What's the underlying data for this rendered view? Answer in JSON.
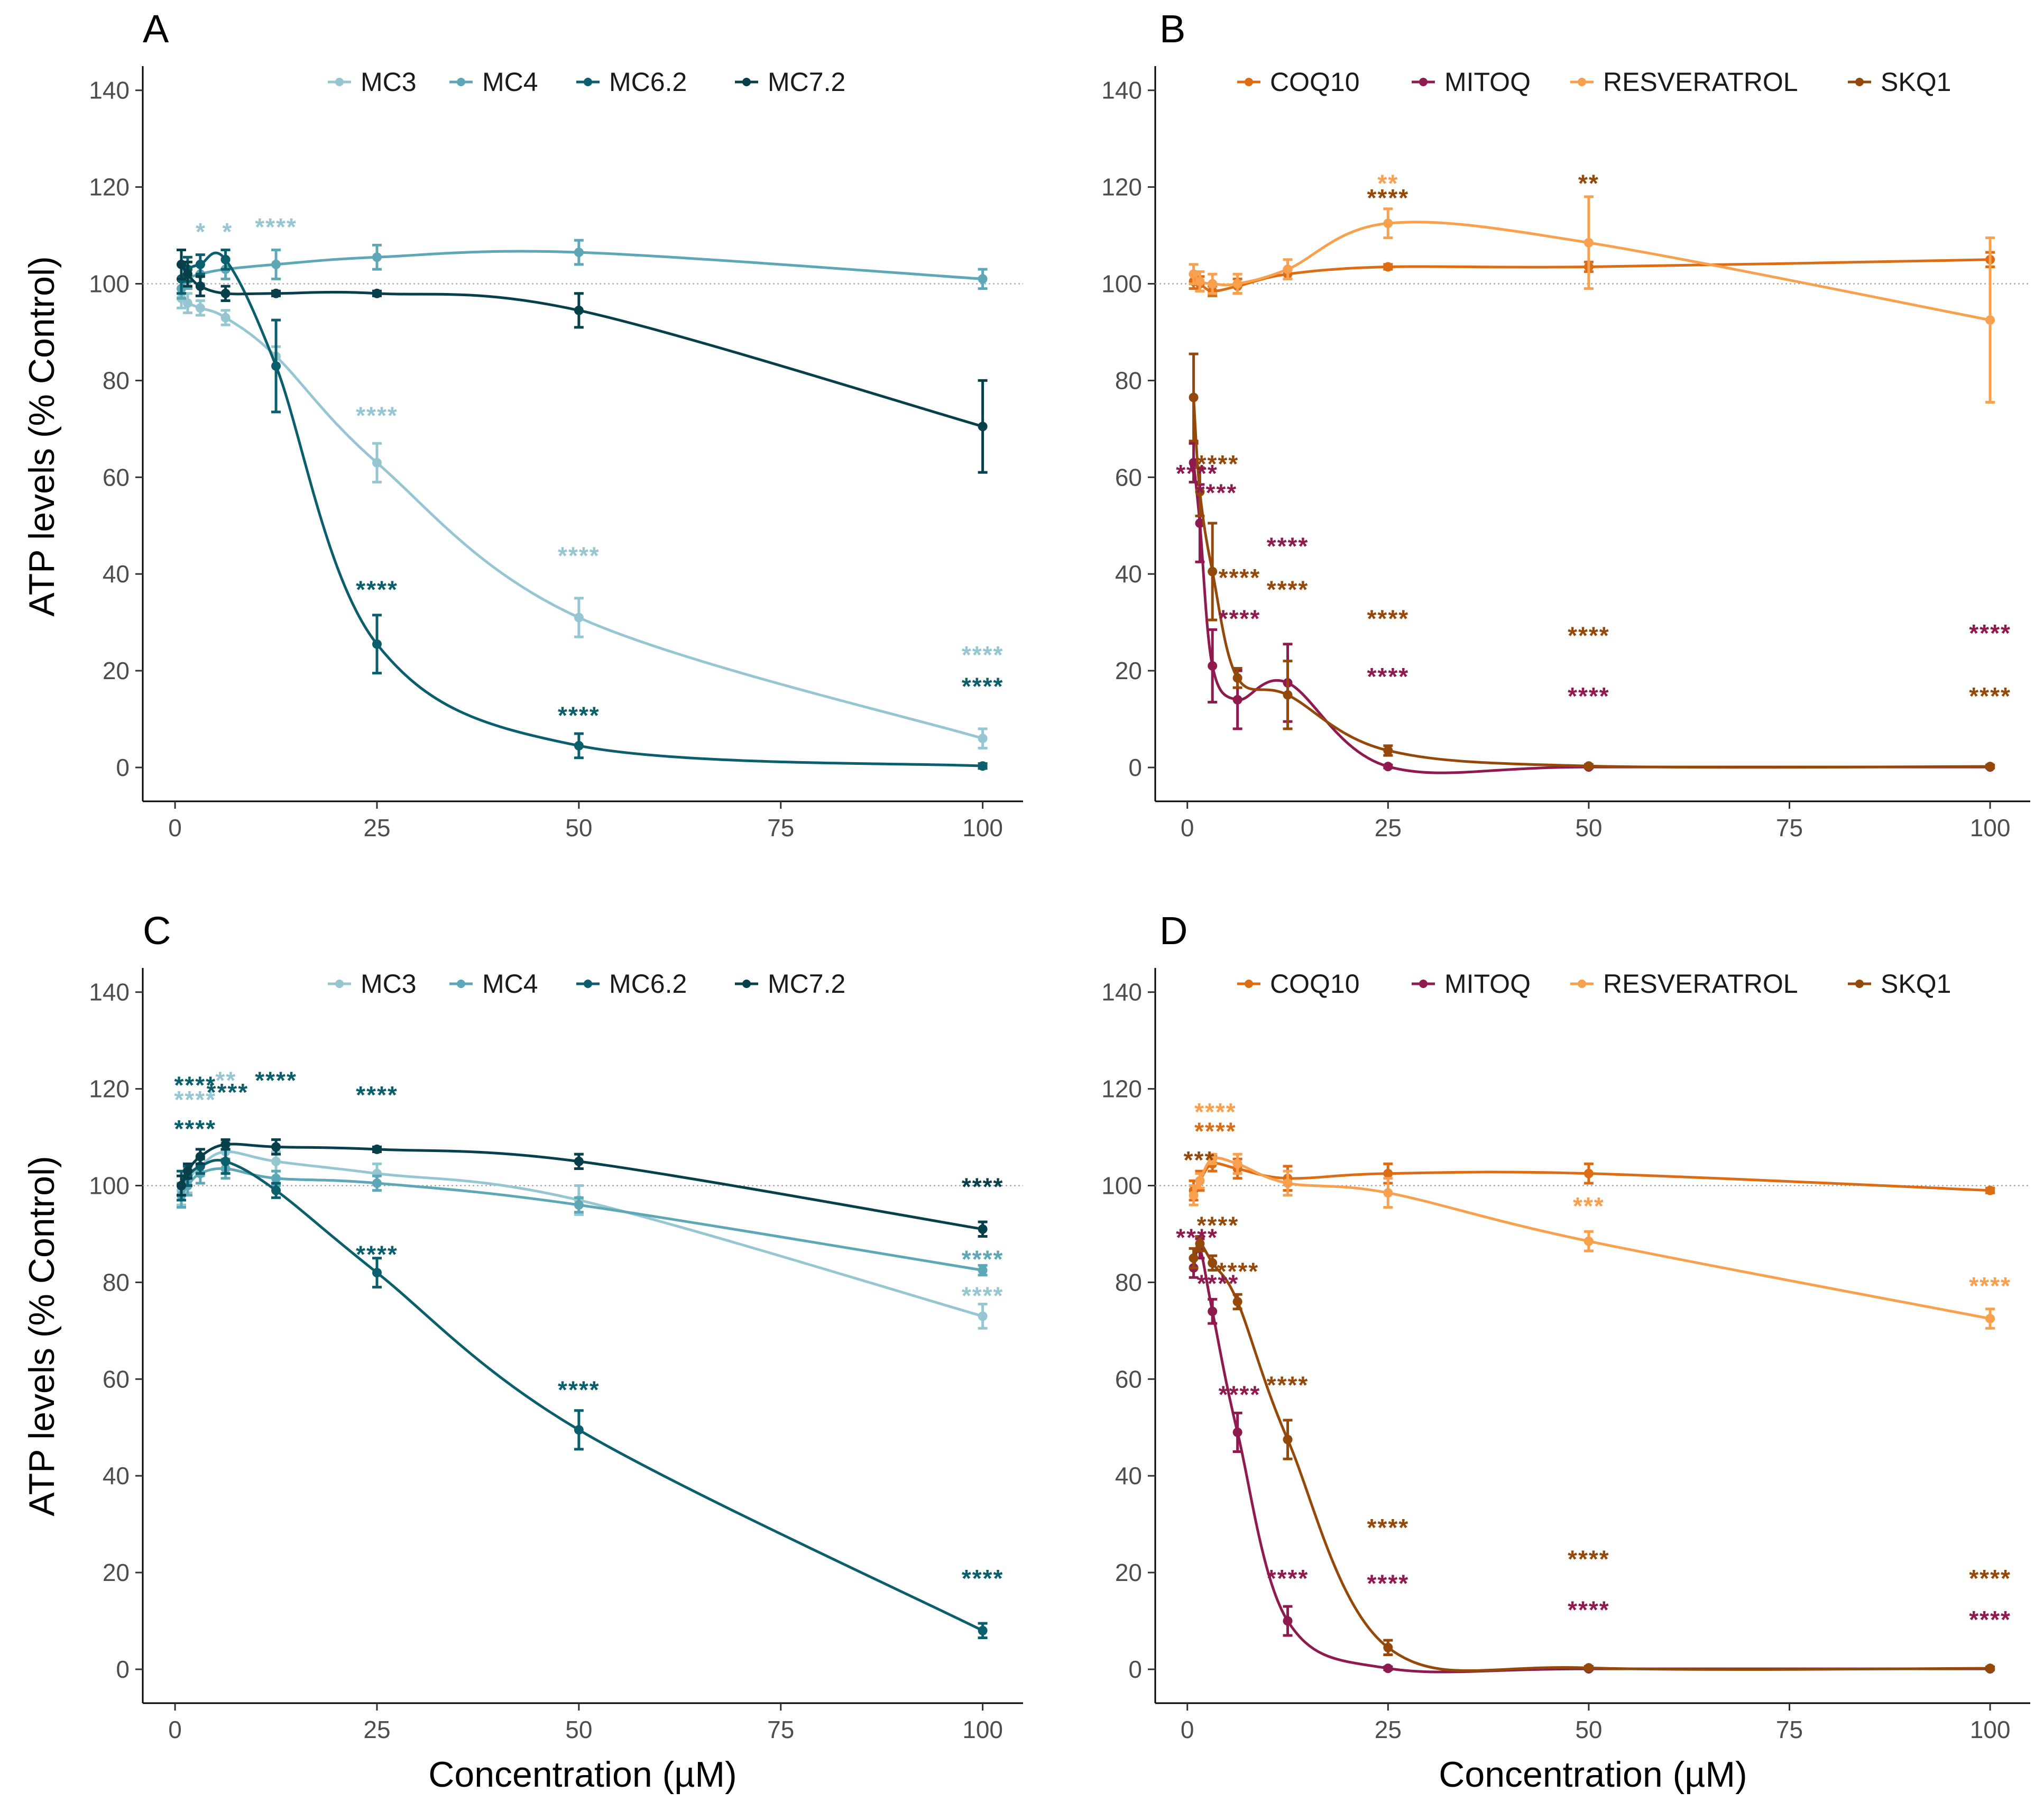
{
  "figure": {
    "y_axis_title": "ATP levels (% Control)",
    "x_axis_title": "Concentration (µM)"
  },
  "colors": {
    "MC3": "#95c6d1",
    "MC4": "#5da7b6",
    "MC6.2": "#0b5e6b",
    "MC7.2": "#073f4b",
    "COQ10": "#dc6d14",
    "MITOQ": "#8e1a50",
    "RESVERATROL": "#f8a04e",
    "SKQ1": "#94490b"
  },
  "chart_data": [
    {
      "panel": "A",
      "type": "line",
      "xlabel": "Concentration (µM)",
      "ylabel": "ATP levels (% Control)",
      "xlim": [
        -4,
        105
      ],
      "ylim": [
        -7,
        145
      ],
      "xticks": [
        "0",
        "25",
        "50",
        "75",
        "100"
      ],
      "yticks": [
        "0",
        "20",
        "40",
        "60",
        "80",
        "100",
        "120",
        "140"
      ],
      "legend": [
        "MC3",
        "MC4",
        "MC6.2",
        "MC7.2"
      ],
      "series": [
        {
          "name": "MC3",
          "x": [
            0.78,
            1.56,
            3.125,
            6.25,
            12.5,
            25,
            50,
            100
          ],
          "y": [
            97,
            96,
            95,
            93,
            85,
            63,
            31,
            6
          ],
          "err": [
            2,
            2,
            1.5,
            1.5,
            2,
            4,
            4,
            2
          ]
        },
        {
          "name": "MC4",
          "x": [
            0.78,
            1.56,
            3.125,
            6.25,
            12.5,
            25,
            50,
            100
          ],
          "y": [
            99,
            101,
            102,
            103,
            104,
            105.5,
            106.5,
            101
          ],
          "err": [
            2,
            2,
            2,
            2,
            3,
            2.5,
            2.5,
            2
          ]
        },
        {
          "name": "MC6.2",
          "x": [
            0.78,
            1.56,
            3.125,
            6.25,
            12.5,
            25,
            50,
            100
          ],
          "y": [
            101,
            103,
            104,
            105,
            83,
            25.5,
            4.5,
            0.3
          ],
          "err": [
            3,
            2.5,
            2,
            2,
            9.5,
            6,
            2.5,
            0.5
          ]
        },
        {
          "name": "MC7.2",
          "x": [
            0.78,
            1.56,
            3.125,
            6.25,
            12.5,
            25,
            50,
            100
          ],
          "y": [
            104,
            102,
            99.5,
            98,
            98,
            98,
            94.5,
            70.5
          ],
          "err": [
            3,
            2.5,
            2,
            1.5,
            0.5,
            0.5,
            3.5,
            9.5
          ]
        }
      ],
      "annotations": [
        {
          "text": "*",
          "x": 3.2,
          "y": 111,
          "series": "MC3"
        },
        {
          "text": "*",
          "x": 6.5,
          "y": 111,
          "series": "MC3"
        },
        {
          "text": "****",
          "x": 12.5,
          "y": 112,
          "series": "MC3"
        },
        {
          "text": "****",
          "x": 25,
          "y": 73,
          "series": "MC3"
        },
        {
          "text": "****",
          "x": 50,
          "y": 44,
          "series": "MC3"
        },
        {
          "text": "****",
          "x": 100,
          "y": 23.5,
          "series": "MC3"
        },
        {
          "text": "****",
          "x": 25,
          "y": 37,
          "series": "MC6.2"
        },
        {
          "text": "****",
          "x": 50,
          "y": 11,
          "series": "MC6.2"
        },
        {
          "text": "****",
          "x": 100,
          "y": 17,
          "series": "MC6.2"
        }
      ]
    },
    {
      "panel": "B",
      "type": "line",
      "xlabel": "Concentration (µM)",
      "ylabel": "ATP levels (% Control)",
      "xlim": [
        -4,
        105
      ],
      "ylim": [
        -7,
        145
      ],
      "xticks": [
        "0",
        "25",
        "50",
        "75",
        "100"
      ],
      "yticks": [
        "0",
        "20",
        "40",
        "60",
        "80",
        "100",
        "120",
        "140"
      ],
      "legend": [
        "COQ10",
        "MITOQ",
        "RESVERATROL",
        "SKQ1"
      ],
      "series": [
        {
          "name": "COQ10",
          "x": [
            0.78,
            1.56,
            3.125,
            6.25,
            12.5,
            25,
            50,
            100
          ],
          "y": [
            100.5,
            100,
            98.5,
            99.5,
            102,
            103.5,
            103.5,
            105
          ],
          "err": [
            1.5,
            1.5,
            1,
            1.5,
            1,
            0.5,
            1,
            1.5
          ]
        },
        {
          "name": "MITOQ",
          "x": [
            0.78,
            1.56,
            3.125,
            6.25,
            12.5,
            25,
            50,
            100
          ],
          "y": [
            63,
            50.5,
            21,
            14,
            17.5,
            0.2,
            0.1,
            0.1
          ],
          "err": [
            4,
            8,
            7.5,
            6,
            8,
            0.3,
            0.2,
            0.2
          ]
        },
        {
          "name": "RESVERATROL",
          "x": [
            0.78,
            1.56,
            3.125,
            6.25,
            12.5,
            25,
            50,
            100
          ],
          "y": [
            102,
            100.5,
            100,
            100,
            103,
            112.5,
            108.5,
            92.5
          ],
          "err": [
            2,
            2,
            2,
            2,
            2,
            3,
            9.5,
            17
          ]
        },
        {
          "name": "SKQ1",
          "x": [
            0.78,
            1.56,
            3.125,
            6.25,
            12.5,
            25,
            50,
            100
          ],
          "y": [
            76.5,
            57,
            40.5,
            18.5,
            15,
            3.5,
            0.3,
            0.2
          ],
          "err": [
            9,
            5,
            10,
            2,
            7,
            1,
            0.3,
            0.3
          ]
        }
      ],
      "annotations": [
        {
          "text": "**",
          "x": 25,
          "y": 121,
          "series": "RESVERATROL"
        },
        {
          "text": "****",
          "x": 25,
          "y": 118,
          "series": "SKQ1"
        },
        {
          "text": "**",
          "x": 50,
          "y": 121,
          "series": "SKQ1"
        },
        {
          "text": "****",
          "x": 3.8,
          "y": 63,
          "series": "SKQ1"
        },
        {
          "text": "****",
          "x": 1.2,
          "y": 61,
          "series": "MITOQ"
        },
        {
          "text": "****",
          "x": 3.6,
          "y": 57,
          "series": "MITOQ"
        },
        {
          "text": "****",
          "x": 12.5,
          "y": 46,
          "series": "MITOQ"
        },
        {
          "text": "****",
          "x": 6.5,
          "y": 39.5,
          "series": "SKQ1"
        },
        {
          "text": "****",
          "x": 12.5,
          "y": 37,
          "series": "SKQ1"
        },
        {
          "text": "****",
          "x": 6.5,
          "y": 31,
          "series": "MITOQ"
        },
        {
          "text": "****",
          "x": 25,
          "y": 31,
          "series": "SKQ1"
        },
        {
          "text": "****",
          "x": 25,
          "y": 19,
          "series": "MITOQ"
        },
        {
          "text": "****",
          "x": 50,
          "y": 27.5,
          "series": "SKQ1"
        },
        {
          "text": "****",
          "x": 50,
          "y": 15,
          "series": "MITOQ"
        },
        {
          "text": "****",
          "x": 100,
          "y": 28,
          "series": "MITOQ"
        },
        {
          "text": "****",
          "x": 100,
          "y": 15,
          "series": "SKQ1"
        }
      ]
    },
    {
      "panel": "C",
      "type": "line",
      "xlabel": "Concentration (µM)",
      "ylabel": "ATP levels (% Control)",
      "xlim": [
        -4,
        105
      ],
      "ylim": [
        -7,
        145
      ],
      "xticks": [
        "0",
        "25",
        "50",
        "75",
        "100"
      ],
      "yticks": [
        "0",
        "20",
        "40",
        "60",
        "80",
        "100",
        "120",
        "140"
      ],
      "legend": [
        "MC3",
        "MC4",
        "MC6.2",
        "MC7.2"
      ],
      "series": [
        {
          "name": "MC3",
          "x": [
            0.78,
            1.56,
            3.125,
            6.25,
            12.5,
            25,
            50,
            100
          ],
          "y": [
            99,
            101,
            104,
            107,
            105,
            102.5,
            97,
            73
          ],
          "err": [
            3,
            2.5,
            2,
            2,
            2,
            2,
            3,
            2.5
          ]
        },
        {
          "name": "MC4",
          "x": [
            0.78,
            1.56,
            3.125,
            6.25,
            12.5,
            25,
            50,
            100
          ],
          "y": [
            98,
            100,
            102.5,
            103.5,
            101.5,
            100.5,
            96,
            82.5
          ],
          "err": [
            2.5,
            2,
            2,
            2,
            1.5,
            1.5,
            1.5,
            1
          ]
        },
        {
          "name": "MC6.2",
          "x": [
            0.78,
            1.56,
            3.125,
            6.25,
            12.5,
            25,
            50,
            100
          ],
          "y": [
            100,
            102,
            104,
            105,
            99,
            82,
            49.5,
            8
          ],
          "err": [
            3,
            2,
            1.5,
            2.5,
            1.5,
            3,
            4,
            1.5
          ]
        },
        {
          "name": "MC7.2",
          "x": [
            0.78,
            1.56,
            3.125,
            6.25,
            12.5,
            25,
            50,
            100
          ],
          "y": [
            100,
            103,
            106,
            108.5,
            108,
            107.5,
            105,
            91
          ],
          "err": [
            2,
            1.5,
            1.5,
            1,
            1.5,
            0.5,
            1.5,
            1.5
          ]
        }
      ],
      "annotations": [
        {
          "text": "****",
          "x": 2.5,
          "y": 121,
          "series": "MC6.2"
        },
        {
          "text": "****",
          "x": 2.5,
          "y": 118,
          "series": "MC3"
        },
        {
          "text": "**",
          "x": 6.3,
          "y": 122,
          "series": "MC3"
        },
        {
          "text": "****",
          "x": 6.5,
          "y": 119.5,
          "series": "MC6.2"
        },
        {
          "text": "****",
          "x": 12.5,
          "y": 122,
          "series": "MC6.2"
        },
        {
          "text": "****",
          "x": 25,
          "y": 119,
          "series": "MC6.2"
        },
        {
          "text": "****",
          "x": 2.5,
          "y": 112,
          "series": "MC6.2"
        },
        {
          "text": "****",
          "x": 25,
          "y": 86,
          "series": "MC6.2"
        },
        {
          "text": "****",
          "x": 50,
          "y": 58,
          "series": "MC6.2"
        },
        {
          "text": "****",
          "x": 100,
          "y": 100,
          "series": "MC7.2"
        },
        {
          "text": "****",
          "x": 100,
          "y": 85,
          "series": "MC4"
        },
        {
          "text": "****",
          "x": 100,
          "y": 77.5,
          "series": "MC3"
        },
        {
          "text": "****",
          "x": 100,
          "y": 19,
          "series": "MC6.2"
        }
      ]
    },
    {
      "panel": "D",
      "type": "line",
      "xlabel": "Concentration (µM)",
      "ylabel": "ATP levels (% Control)",
      "xlim": [
        -4,
        105
      ],
      "ylim": [
        -7,
        145
      ],
      "xticks": [
        "0",
        "25",
        "50",
        "75",
        "100"
      ],
      "yticks": [
        "0",
        "20",
        "40",
        "60",
        "80",
        "100",
        "120",
        "140"
      ],
      "legend": [
        "COQ10",
        "MITOQ",
        "RESVERATROL",
        "SKQ1"
      ],
      "series": [
        {
          "name": "COQ10",
          "x": [
            0.78,
            1.56,
            3.125,
            6.25,
            12.5,
            25,
            50,
            100
          ],
          "y": [
            99,
            101,
            104.5,
            103.5,
            101.5,
            102.5,
            102.5,
            99
          ],
          "err": [
            2,
            2,
            1.5,
            2,
            2.5,
            2,
            2,
            0.5
          ]
        },
        {
          "name": "MITOQ",
          "x": [
            0.78,
            1.56,
            3.125,
            6.25,
            12.5,
            25,
            50,
            100
          ],
          "y": [
            83,
            87,
            74,
            49,
            10,
            0.2,
            0.1,
            0.1
          ],
          "err": [
            2,
            2,
            2.5,
            4,
            3,
            0.3,
            0.2,
            0.2
          ]
        },
        {
          "name": "RESVERATROL",
          "x": [
            0.78,
            1.56,
            3.125,
            6.25,
            12.5,
            25,
            50,
            100
          ],
          "y": [
            98,
            101,
            105.5,
            104.5,
            100.5,
            98.5,
            88.5,
            72.5
          ],
          "err": [
            2,
            1.5,
            1,
            2,
            2.5,
            3,
            2,
            2
          ]
        },
        {
          "name": "SKQ1",
          "x": [
            0.78,
            1.56,
            3.125,
            6.25,
            12.5,
            25,
            50,
            100
          ],
          "y": [
            85,
            88,
            84,
            76,
            47.5,
            4.5,
            0.3,
            0.2
          ],
          "err": [
            2,
            1.5,
            1.5,
            1.5,
            4,
            1.5,
            0.3,
            0.3
          ]
        }
      ],
      "annotations": [
        {
          "text": "****",
          "x": 3.5,
          "y": 115.5,
          "series": "RESVERATROL"
        },
        {
          "text": "****",
          "x": 3.5,
          "y": 111.5,
          "series": "COQ10"
        },
        {
          "text": "***",
          "x": 1.5,
          "y": 105.5,
          "series": "SKQ1"
        },
        {
          "text": "****",
          "x": 3.8,
          "y": 92,
          "series": "SKQ1"
        },
        {
          "text": "****",
          "x": 1.2,
          "y": 89.5,
          "series": "MITOQ"
        },
        {
          "text": "****",
          "x": 6.3,
          "y": 82.5,
          "series": "SKQ1"
        },
        {
          "text": "****",
          "x": 3.8,
          "y": 80,
          "series": "MITOQ"
        },
        {
          "text": "***",
          "x": 50,
          "y": 96,
          "series": "RESVERATROL"
        },
        {
          "text": "****",
          "x": 100,
          "y": 79.5,
          "series": "RESVERATROL"
        },
        {
          "text": "****",
          "x": 6.5,
          "y": 57,
          "series": "MITOQ"
        },
        {
          "text": "****",
          "x": 12.5,
          "y": 59,
          "series": "SKQ1"
        },
        {
          "text": "****",
          "x": 12.5,
          "y": 19,
          "series": "MITOQ"
        },
        {
          "text": "****",
          "x": 25,
          "y": 29.5,
          "series": "SKQ1"
        },
        {
          "text": "****",
          "x": 25,
          "y": 18,
          "series": "MITOQ"
        },
        {
          "text": "****",
          "x": 50,
          "y": 23,
          "series": "SKQ1"
        },
        {
          "text": "****",
          "x": 50,
          "y": 12.5,
          "series": "MITOQ"
        },
        {
          "text": "****",
          "x": 100,
          "y": 19,
          "series": "SKQ1"
        },
        {
          "text": "****",
          "x": 100,
          "y": 10.5,
          "series": "MITOQ"
        }
      ]
    }
  ]
}
